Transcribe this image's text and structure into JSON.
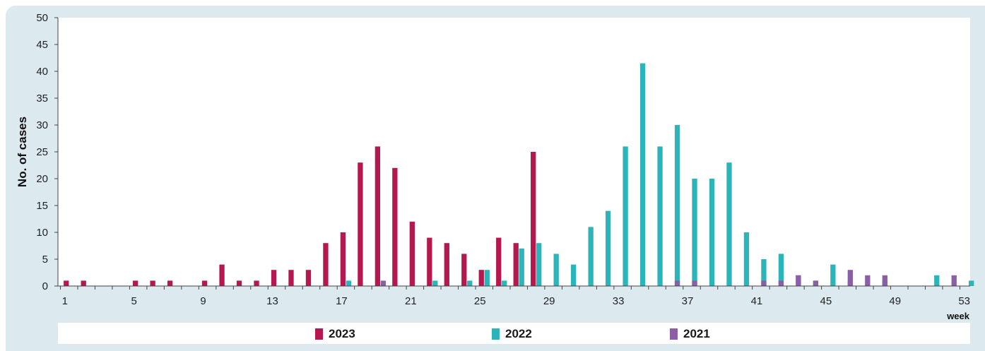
{
  "chart_data": {
    "type": "bar",
    "ylabel": "No. of cases",
    "xunit": "week",
    "ylim": [
      0,
      50
    ],
    "yticks": [
      0,
      5,
      10,
      15,
      20,
      25,
      30,
      35,
      40,
      45,
      50
    ],
    "xlim": [
      1,
      53
    ],
    "xticks": [
      1,
      5,
      9,
      13,
      17,
      21,
      25,
      29,
      33,
      37,
      41,
      45,
      49,
      53
    ],
    "legend_position": "bottom",
    "series": [
      {
        "name": "2023",
        "color": "#b5174f",
        "points": [
          [
            1,
            1
          ],
          [
            2,
            1
          ],
          [
            5,
            1
          ],
          [
            6,
            1
          ],
          [
            7,
            1
          ],
          [
            9,
            1
          ],
          [
            10,
            4
          ],
          [
            11,
            1
          ],
          [
            12,
            1
          ],
          [
            13,
            3
          ],
          [
            14,
            3
          ],
          [
            15,
            3
          ],
          [
            16,
            8
          ],
          [
            17,
            10
          ],
          [
            18,
            23
          ],
          [
            19,
            26
          ],
          [
            20,
            22
          ],
          [
            21,
            12
          ],
          [
            22,
            9
          ],
          [
            23,
            8
          ],
          [
            24,
            6
          ],
          [
            25,
            3
          ],
          [
            26,
            9
          ],
          [
            27,
            8
          ],
          [
            28,
            25
          ]
        ]
      },
      {
        "name": "2022",
        "color": "#2bb5b8",
        "points": [
          [
            17,
            1
          ],
          [
            22,
            1
          ],
          [
            24,
            1
          ],
          [
            25,
            3
          ],
          [
            26,
            1
          ],
          [
            27,
            7
          ],
          [
            28,
            8
          ],
          [
            29,
            6
          ],
          [
            30,
            4
          ],
          [
            31,
            11
          ],
          [
            32,
            14
          ],
          [
            33,
            26
          ],
          [
            34,
            41.5
          ],
          [
            35,
            26
          ],
          [
            36,
            30
          ],
          [
            37,
            20
          ],
          [
            38,
            20
          ],
          [
            39,
            23
          ],
          [
            40,
            10
          ],
          [
            41,
            5
          ],
          [
            42,
            6
          ],
          [
            43,
            2
          ],
          [
            44,
            1
          ],
          [
            45,
            4
          ],
          [
            46,
            1
          ],
          [
            47,
            0
          ],
          [
            48,
            1
          ],
          [
            51,
            2
          ],
          [
            53,
            1
          ]
        ]
      },
      {
        "name": "2021",
        "color": "#8b5ea8",
        "points": [
          [
            19,
            1
          ],
          [
            36,
            1
          ],
          [
            37,
            1
          ],
          [
            41,
            1
          ],
          [
            42,
            1
          ],
          [
            43,
            2
          ],
          [
            44,
            1
          ],
          [
            46,
            3
          ],
          [
            47,
            2
          ],
          [
            48,
            2
          ],
          [
            52,
            2
          ]
        ]
      }
    ]
  },
  "legend": {
    "items": [
      {
        "label": "2023",
        "color": "#b5174f"
      },
      {
        "label": "2022",
        "color": "#2bb5b8"
      },
      {
        "label": "2021",
        "color": "#8b5ea8"
      }
    ]
  }
}
